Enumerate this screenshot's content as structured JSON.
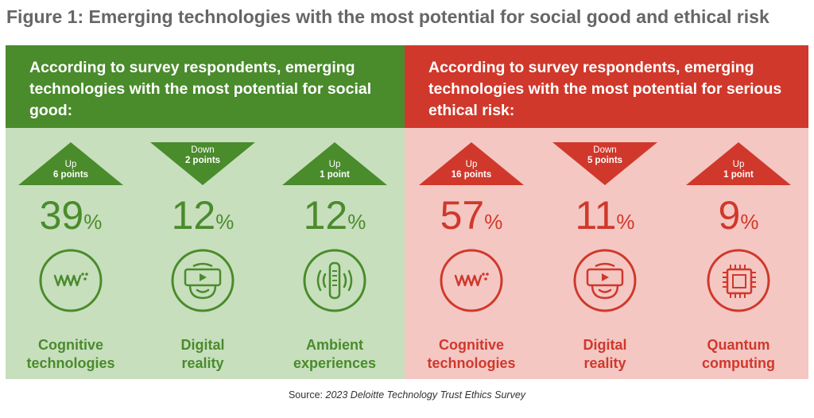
{
  "title": "Figure 1: Emerging technologies with the most potential for social good and ethical risk",
  "source_prefix": "Source: ",
  "source_title": "2023 Deloitte Technology Trust Ethics Survey",
  "colors": {
    "good": "#4a8b2c",
    "good_bg": "#c7dfbd",
    "risk": "#d0382b",
    "risk_bg": "#f4c7c3"
  },
  "chart_data": [
    {
      "type": "bar",
      "title": "According to survey respondents, emerging technologies with the most potential for social good:",
      "categories": [
        "Cognitive technologies",
        "Digital reality",
        "Ambient experiences"
      ],
      "label_lines": [
        [
          "Cognitive",
          "technologies"
        ],
        [
          "Digital",
          "reality"
        ],
        [
          "Ambient",
          "experiences"
        ]
      ],
      "values": [
        39,
        12,
        12
      ],
      "unit": "%",
      "change_direction": [
        "Up",
        "Down",
        "Up"
      ],
      "change_points": [
        "6 points",
        "2 points",
        "1 point"
      ],
      "icons": [
        "cognitive-icon",
        "digital-reality-icon",
        "ambient-icon"
      ]
    },
    {
      "type": "bar",
      "title": "According to survey respondents, emerging technologies with the most potential for serious ethical risk:",
      "categories": [
        "Cognitive technologies",
        "Digital reality",
        "Quantum computing"
      ],
      "label_lines": [
        [
          "Cognitive",
          "technologies"
        ],
        [
          "Digital",
          "reality"
        ],
        [
          "Quantum",
          "computing"
        ]
      ],
      "values": [
        57,
        11,
        9
      ],
      "unit": "%",
      "change_direction": [
        "Up",
        "Down",
        "Up"
      ],
      "change_points": [
        "16 points",
        "5 points",
        "1 point"
      ],
      "icons": [
        "cognitive-icon",
        "digital-reality-icon",
        "quantum-icon"
      ]
    }
  ]
}
